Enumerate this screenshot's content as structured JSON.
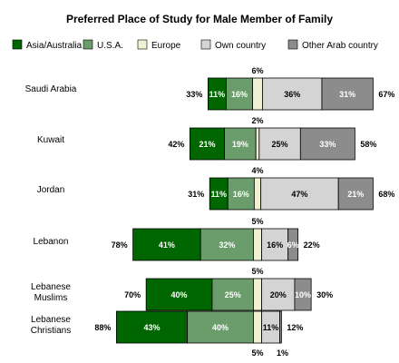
{
  "chart_data": {
    "type": "bar",
    "orientation": "horizontal",
    "stacked": true,
    "title": "Preferred Place of Study for Male Member of Family",
    "legend_position": "top",
    "categories": [
      [
        "Saudi Arabia"
      ],
      [
        "Kuwait"
      ],
      [
        "Jordan"
      ],
      [
        "Lebanon"
      ],
      [
        "Lebanese",
        "Muslims"
      ],
      [
        "Lebanese",
        "Christians"
      ]
    ],
    "series": [
      {
        "name": "Asia/Australia",
        "color": "#006600",
        "text_color": "#ffffff",
        "values": [
          11,
          21,
          11,
          41,
          40,
          43
        ]
      },
      {
        "name": "U.S.A.",
        "color": "#6b9c6b",
        "text_color": "#ffffff",
        "values": [
          16,
          19,
          16,
          32,
          25,
          40
        ]
      },
      {
        "name": "Europe",
        "color": "#f0f0d2",
        "text_color": "#000000",
        "values": [
          6,
          2,
          4,
          5,
          5,
          5
        ]
      },
      {
        "name": "Own country",
        "color": "#d4d4d4",
        "text_color": "#000000",
        "values": [
          36,
          25,
          47,
          16,
          20,
          11
        ]
      },
      {
        "name": "Other Arab country",
        "color": "#8c8c8c",
        "text_color": "#ffffff",
        "values": [
          31,
          33,
          21,
          6,
          10,
          1
        ]
      }
    ],
    "segment_labels": [
      [
        "11%",
        "16%",
        "6%",
        "36%",
        "31%"
      ],
      [
        "21%",
        "19%",
        "2%",
        "25%",
        "33%"
      ],
      [
        "11%",
        "16%",
        "4%",
        "47%",
        "21%"
      ],
      [
        "41%",
        "32%",
        "5%",
        "16%",
        "6%"
      ],
      [
        "40%",
        "25%",
        "5%",
        "20%",
        "10%"
      ],
      [
        "43%",
        "40%",
        "5%",
        "11%",
        "1%"
      ]
    ],
    "left_totals": [
      "33%",
      "42%",
      "31%",
      "78%",
      "70%",
      "88%"
    ],
    "right_totals": [
      "67%",
      "58%",
      "68%",
      "22%",
      "30%",
      "12%"
    ]
  }
}
